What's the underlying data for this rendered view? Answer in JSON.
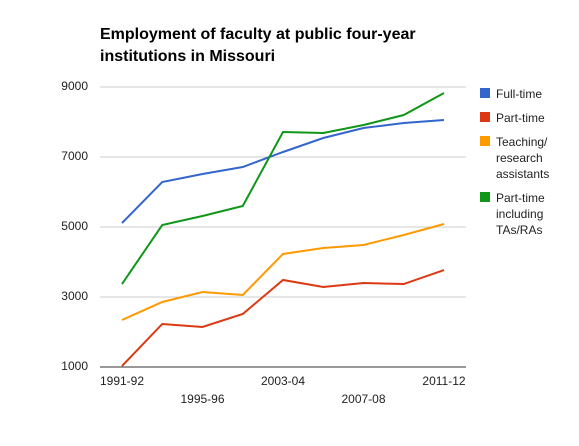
{
  "chart_data": {
    "type": "line",
    "title": "Employment of faculty at public four-year institutions in Missouri",
    "categories": [
      "1991-92",
      null,
      "1995-96",
      null,
      "2003-04",
      null,
      "2007-08",
      null,
      "2011-12"
    ],
    "series": [
      {
        "name": "Full-time",
        "color": "#3366cc",
        "values": [
          5114,
          6286,
          6514,
          6714,
          7143,
          7543,
          7829,
          7971,
          8057
        ]
      },
      {
        "name": "Part-time",
        "color": "#dc3912",
        "values": [
          1029,
          2229,
          2143,
          2514,
          3486,
          3286,
          3400,
          3371,
          3771
        ]
      },
      {
        "name": "Teaching/ research assistants",
        "color": "#ff9900",
        "values": [
          2343,
          2857,
          3143,
          3057,
          4229,
          4400,
          4486,
          4771,
          5086
        ]
      },
      {
        "name": "Part-time including TAs/RAs",
        "color": "#109618",
        "values": [
          3371,
          5057,
          5314,
          5600,
          7714,
          7686,
          7914,
          8200,
          8829
        ]
      }
    ],
    "ylim": [
      1000,
      9000
    ],
    "yticks": [
      1000,
      3000,
      5000,
      7000,
      9000
    ],
    "grid": true,
    "legend": "right"
  }
}
